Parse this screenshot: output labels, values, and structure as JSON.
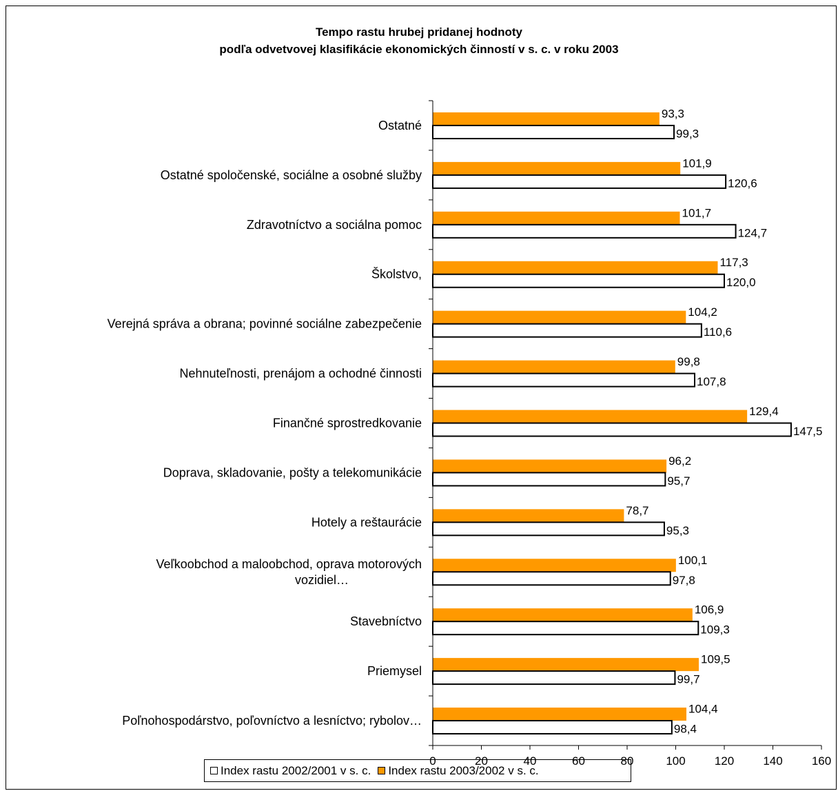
{
  "chart_data": {
    "type": "bar",
    "orientation": "horizontal",
    "title_line1": "Tempo rastu hrubej pridanej hodnoty",
    "title_line2": "podľa odvetvovej klasifikácie ekonomických činností v s. c. v roku 2003",
    "categories": [
      "Ostatné",
      "Ostatné spoločenské, sociálne a osobné služby",
      "Zdravotníctvo a sociálna pomoc",
      "Školstvo,",
      "Verejná správa a obrana; povinné sociálne zabezpečenie",
      "Nehnuteľnosti, prenájom a ochodné činnosti",
      "Finančné sprostredkovanie",
      "Doprava, skladovanie, pošty a telekomunikácie",
      "Hotely a reštaurácie",
      "Veľkoobchod a maloobchod, oprava motorových vozidiel…",
      "Stavebníctvo",
      "Priemysel",
      "Poľnohospodárstvo, poľovníctvo a lesníctvo; rybolov…"
    ],
    "category_lines": [
      [
        "Ostatné"
      ],
      [
        "Ostatné spoločenské, sociálne a osobné služby"
      ],
      [
        "Zdravotníctvo a sociálna pomoc"
      ],
      [
        "Školstvo,"
      ],
      [
        "Verejná správa a obrana; povinné sociálne zabezpečenie"
      ],
      [
        "Nehnuteľnosti, prenájom a ochodné činnosti"
      ],
      [
        "Finančné sprostredkovanie"
      ],
      [
        "Doprava, skladovanie, pošty a telekomunikácie"
      ],
      [
        "Hotely a reštaurácie"
      ],
      [
        "Veľkoobchod a maloobchod, oprava motorových",
        "vozidiel…"
      ],
      [
        "Stavebníctvo"
      ],
      [
        "Priemysel"
      ],
      [
        "Poľnohospodárstvo, poľovníctvo a lesníctvo; rybolov…"
      ]
    ],
    "series": [
      {
        "name": "Index rastu 2002/2001 v s. c.",
        "color": "#ffffff",
        "values": [
          99.3,
          120.6,
          124.7,
          120.0,
          110.6,
          107.8,
          147.5,
          95.7,
          95.3,
          97.8,
          109.3,
          99.7,
          98.4
        ],
        "labels": [
          "99,3",
          "120,6",
          "124,7",
          "120,0",
          "110,6",
          "107,8",
          "147,5",
          "95,7",
          "95,3",
          "97,8",
          "109,3",
          "99,7",
          "98,4"
        ]
      },
      {
        "name": "Index rastu 2003/2002 v s. c.",
        "color": "#ff9900",
        "values": [
          93.3,
          101.9,
          101.7,
          117.3,
          104.2,
          99.8,
          129.4,
          96.2,
          78.7,
          100.1,
          106.9,
          109.5,
          104.4
        ],
        "labels": [
          "93,3",
          "101,9",
          "101,7",
          "117,3",
          "104,2",
          "99,8",
          "129,4",
          "96,2",
          "78,7",
          "100,1",
          "106,9",
          "109,5",
          "104,4"
        ]
      }
    ],
    "xlim": [
      0,
      160
    ],
    "xticks": [
      0,
      20,
      40,
      60,
      80,
      100,
      120,
      140,
      160
    ],
    "legend_position": "bottom",
    "grid": false
  }
}
